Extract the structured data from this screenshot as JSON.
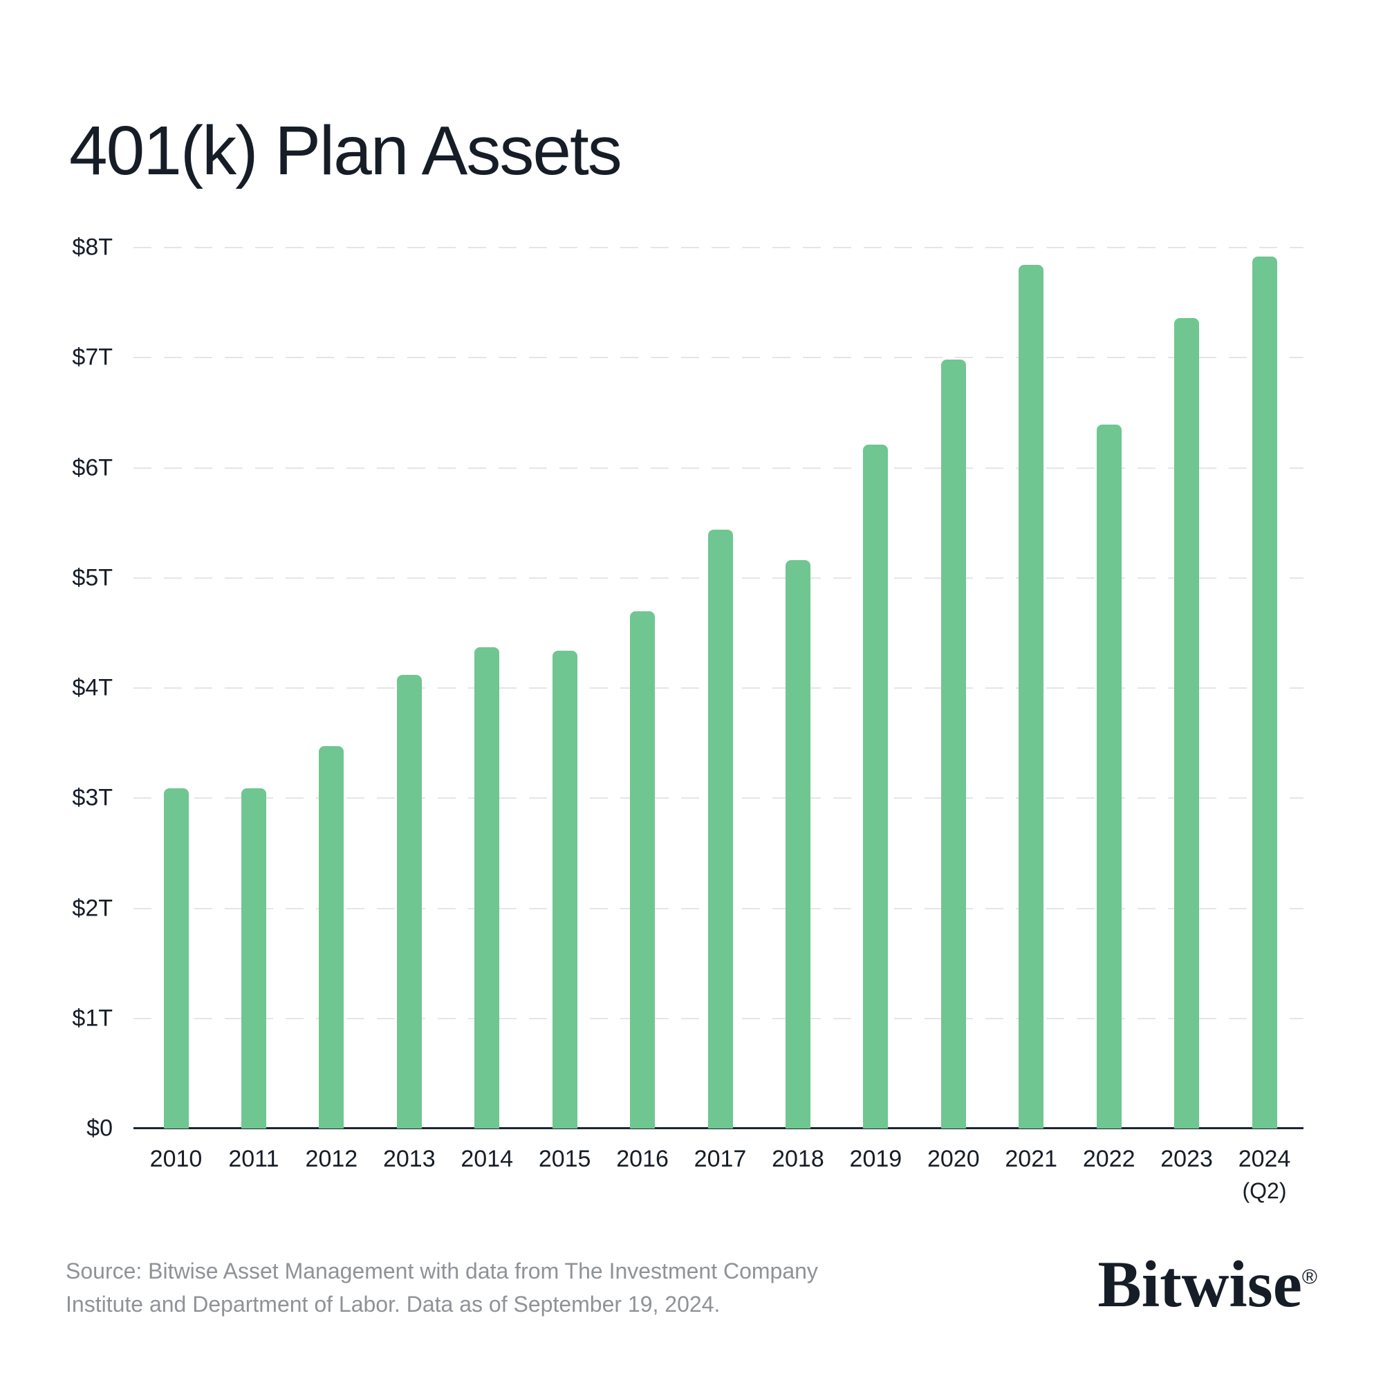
{
  "title": "401(k) Plan Assets",
  "colors": {
    "background": "#FFFFFF",
    "bar": "#6FC690",
    "gridline": "#E4E5E7",
    "axis_line": "#1B2530",
    "text_dark": "#161D27",
    "text_muted": "#8F9296"
  },
  "chart_data": {
    "type": "bar",
    "title": "401(k) Plan Assets",
    "unit": "USD trillions",
    "categories": [
      "2010",
      "2011",
      "2012",
      "2013",
      "2014",
      "2015",
      "2016",
      "2017",
      "2018",
      "2019",
      "2020",
      "2021",
      "2022",
      "2023",
      "2024"
    ],
    "category_sublabels": [
      "",
      "",
      "",
      "",
      "",
      "",
      "",
      "",
      "",
      "",
      "",
      "",
      "",
      "",
      "(Q2)"
    ],
    "values": [
      3.09,
      3.09,
      3.47,
      4.12,
      4.37,
      4.34,
      4.7,
      5.44,
      5.16,
      6.21,
      6.98,
      7.84,
      6.39,
      7.36,
      7.92
    ],
    "ylim": [
      0,
      8
    ],
    "yticks": [
      8,
      7,
      6,
      5,
      4,
      3,
      2,
      1,
      0
    ],
    "ytick_labels": [
      "$8T",
      "$7T",
      "$6T",
      "$5T",
      "$4T",
      "$3T",
      "$2T",
      "$1T",
      "$0"
    ],
    "xlabel": "",
    "ylabel": "",
    "grid": "horizontal-dashed",
    "legend": "none"
  },
  "source": {
    "line1": "Source: Bitwise Asset Management with data from The Investment Company",
    "line2": "Institute and Department of Labor. Data as of September 19, 2024."
  },
  "logo": {
    "text": "Bitwise",
    "registered": "®"
  }
}
